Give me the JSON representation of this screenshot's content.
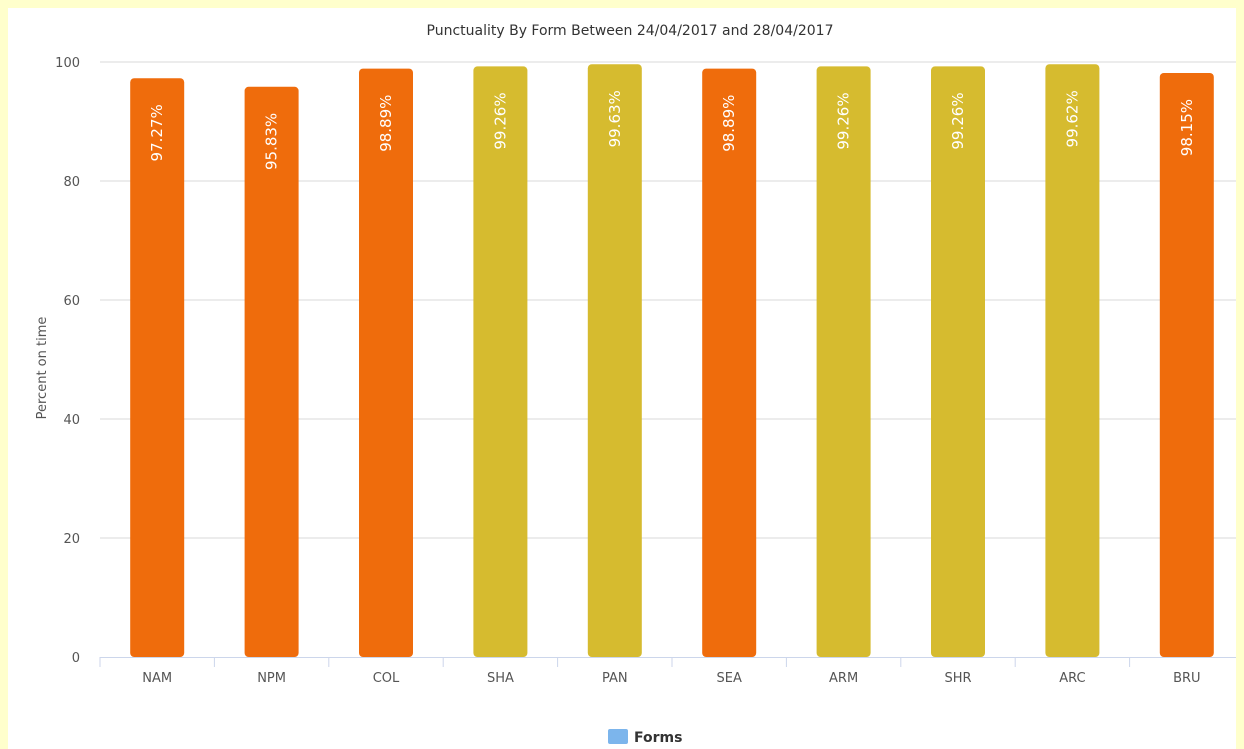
{
  "chart_data": {
    "type": "bar",
    "title": "Punctuality By Form Between 24/04/2017 and 28/04/2017",
    "xlabel": "",
    "ylabel": "Percent on time",
    "ylim": [
      0,
      100
    ],
    "yticks": [
      0,
      20,
      40,
      60,
      80,
      100
    ],
    "categories": [
      "NAM",
      "NPM",
      "COL",
      "SHA",
      "PAN",
      "SEA",
      "ARM",
      "SHR",
      "ARC",
      "BRU"
    ],
    "series": [
      {
        "name": "Forms",
        "values": [
          97.27,
          95.83,
          98.89,
          99.26,
          99.63,
          98.89,
          99.26,
          99.26,
          99.62,
          98.15
        ],
        "labels": [
          "97.27%",
          "95.83%",
          "98.89%",
          "99.26%",
          "99.63%",
          "98.89%",
          "99.26%",
          "99.26%",
          "99.62%",
          "98.15%"
        ],
        "colors": [
          "#ef6c0c",
          "#ef6c0c",
          "#ef6c0c",
          "#d6bb2f",
          "#d6bb2f",
          "#ef6c0c",
          "#d6bb2f",
          "#d6bb2f",
          "#d6bb2f",
          "#ef6c0c"
        ],
        "legend_color": "#7cb5ec"
      }
    ],
    "grid": true,
    "legend_position": "bottom-center"
  }
}
